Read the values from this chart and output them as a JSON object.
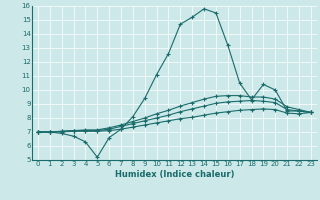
{
  "xlabel": "Humidex (Indice chaleur)",
  "xlim": [
    -0.5,
    23.5
  ],
  "ylim": [
    5,
    16
  ],
  "yticks": [
    5,
    6,
    7,
    8,
    9,
    10,
    11,
    12,
    13,
    14,
    15,
    16
  ],
  "xticks": [
    0,
    1,
    2,
    3,
    4,
    5,
    6,
    7,
    8,
    9,
    10,
    11,
    12,
    13,
    14,
    15,
    16,
    17,
    18,
    19,
    20,
    21,
    22,
    23
  ],
  "bg_color": "#cce8e8",
  "line_color": "#1a6b6b",
  "grid_color": "#ffffff",
  "lines": [
    {
      "x": [
        0,
        1,
        2,
        3,
        4,
        5,
        6,
        7,
        8,
        9,
        10,
        11,
        12,
        13,
        14,
        15,
        16,
        17,
        18,
        19,
        20,
        21,
        22,
        23
      ],
      "y": [
        7.0,
        7.0,
        6.9,
        6.7,
        6.3,
        5.2,
        6.6,
        7.2,
        8.1,
        9.4,
        11.1,
        12.6,
        14.7,
        15.2,
        15.8,
        15.5,
        13.2,
        10.5,
        9.3,
        10.4,
        10.0,
        8.5,
        8.5,
        8.4
      ]
    },
    {
      "x": [
        0,
        1,
        2,
        3,
        4,
        5,
        6,
        7,
        8,
        9,
        10,
        11,
        12,
        13,
        14,
        15,
        16,
        17,
        18,
        19,
        20,
        21,
        22,
        23
      ],
      "y": [
        7.0,
        7.0,
        7.05,
        7.1,
        7.15,
        7.15,
        7.3,
        7.5,
        7.75,
        8.0,
        8.3,
        8.55,
        8.85,
        9.1,
        9.35,
        9.55,
        9.6,
        9.6,
        9.5,
        9.5,
        9.35,
        8.8,
        8.6,
        8.4
      ]
    },
    {
      "x": [
        0,
        1,
        2,
        3,
        4,
        5,
        6,
        7,
        8,
        9,
        10,
        11,
        12,
        13,
        14,
        15,
        16,
        17,
        18,
        19,
        20,
        21,
        22,
        23
      ],
      "y": [
        7.0,
        7.0,
        7.05,
        7.1,
        7.1,
        7.1,
        7.2,
        7.4,
        7.6,
        7.8,
        8.0,
        8.2,
        8.45,
        8.65,
        8.85,
        9.05,
        9.15,
        9.2,
        9.25,
        9.2,
        9.1,
        8.6,
        8.5,
        8.4
      ]
    },
    {
      "x": [
        0,
        1,
        2,
        3,
        4,
        5,
        6,
        7,
        8,
        9,
        10,
        11,
        12,
        13,
        14,
        15,
        16,
        17,
        18,
        19,
        20,
        21,
        22,
        23
      ],
      "y": [
        7.0,
        7.0,
        7.0,
        7.05,
        7.05,
        7.05,
        7.1,
        7.2,
        7.35,
        7.5,
        7.65,
        7.8,
        7.95,
        8.05,
        8.2,
        8.35,
        8.45,
        8.55,
        8.6,
        8.65,
        8.6,
        8.35,
        8.3,
        8.4
      ]
    }
  ]
}
